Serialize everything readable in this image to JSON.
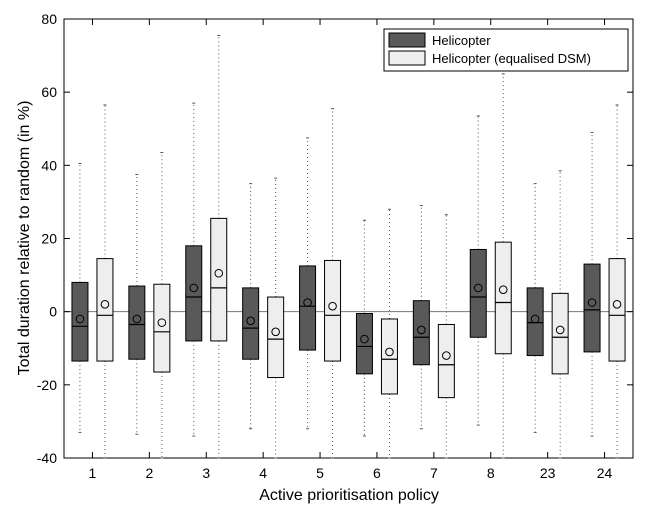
{
  "chart_data": {
    "type": "boxplot",
    "title": "",
    "xlabel": "Active prioritisation policy",
    "ylabel": "Total duration relative to random (in %)",
    "ylim": [
      -40,
      80
    ],
    "yticks": [
      -40,
      -20,
      0,
      20,
      40,
      60,
      80
    ],
    "categories": [
      "1",
      "2",
      "3",
      "4",
      "5",
      "6",
      "7",
      "8",
      "23",
      "24"
    ],
    "grid": false,
    "legend_position": "top-right",
    "reference_line": 0,
    "series": [
      {
        "name": "Helicopter",
        "color": "#595959",
        "boxes": [
          {
            "min": -33,
            "q1": -13.5,
            "median": -4,
            "q3": 8,
            "max": 40.5,
            "mean": -2
          },
          {
            "min": -33.5,
            "q1": -13,
            "median": -3.5,
            "q3": 7,
            "max": 37.5,
            "mean": -2
          },
          {
            "min": -34,
            "q1": -8,
            "median": 4,
            "q3": 18,
            "max": 57,
            "mean": 6.5
          },
          {
            "min": -32,
            "q1": -13,
            "median": -4.5,
            "q3": 6.5,
            "max": 35,
            "mean": -2.5
          },
          {
            "min": -32,
            "q1": -10.5,
            "median": 1.5,
            "q3": 12.5,
            "max": 47.5,
            "mean": 2.5
          },
          {
            "min": -34,
            "q1": -17,
            "median": -9.5,
            "q3": -0.5,
            "max": 25,
            "mean": -7.5
          },
          {
            "min": -32,
            "q1": -14.5,
            "median": -7,
            "q3": 3,
            "max": 29,
            "mean": -5
          },
          {
            "min": -31,
            "q1": -7,
            "median": 4,
            "q3": 17,
            "max": 53.5,
            "mean": 6.5
          },
          {
            "min": -33,
            "q1": -12,
            "median": -3,
            "q3": 6.5,
            "max": 35,
            "mean": -2
          },
          {
            "min": -34,
            "q1": -11,
            "median": 0.5,
            "q3": 13,
            "max": 49,
            "mean": 2.5
          }
        ]
      },
      {
        "name": "Helicopter (equalised DSM)",
        "color": "#eeeeee",
        "boxes": [
          {
            "min": -40,
            "q1": -13.5,
            "median": -1,
            "q3": 14.5,
            "max": 56.5,
            "mean": 2
          },
          {
            "min": -40,
            "q1": -16.5,
            "median": -5.5,
            "q3": 7.5,
            "max": 43.5,
            "mean": -3
          },
          {
            "min": -40,
            "q1": -8,
            "median": 6.5,
            "q3": 25.5,
            "max": 75.5,
            "mean": 10.5
          },
          {
            "min": -40,
            "q1": -18,
            "median": -7.5,
            "q3": 4,
            "max": 36.5,
            "mean": -5.5
          },
          {
            "min": -40,
            "q1": -13.5,
            "median": -1,
            "q3": 14,
            "max": 55.5,
            "mean": 1.5
          },
          {
            "min": -40,
            "q1": -22.5,
            "median": -13,
            "q3": -2,
            "max": 28,
            "mean": -11
          },
          {
            "min": -40,
            "q1": -23.5,
            "median": -14.5,
            "q3": -3.5,
            "max": 26.5,
            "mean": -12
          },
          {
            "min": -40,
            "q1": -11.5,
            "median": 2.5,
            "q3": 19,
            "max": 65,
            "mean": 6
          },
          {
            "min": -40,
            "q1": -17,
            "median": -7,
            "q3": 5,
            "max": 38.5,
            "mean": -5
          },
          {
            "min": -40,
            "q1": -13.5,
            "median": -1,
            "q3": 14.5,
            "max": 56.5,
            "mean": 2
          }
        ]
      }
    ]
  }
}
